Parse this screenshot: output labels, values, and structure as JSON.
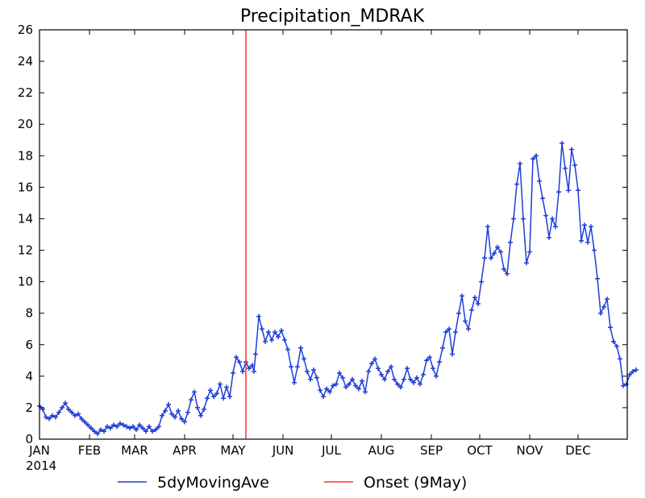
{
  "chart_data": {
    "type": "line",
    "title": "Precipitation_MDRAK",
    "xlabel": "",
    "ylabel": "",
    "xlim": [
      0,
      365
    ],
    "ylim": [
      0,
      26
    ],
    "yticks": [
      0,
      2,
      4,
      6,
      8,
      10,
      12,
      14,
      16,
      18,
      20,
      22,
      24,
      26
    ],
    "grid": false,
    "legend_position": "bottom",
    "x_tick_labels": [
      {
        "day": 0,
        "label": "JAN",
        "sublabel": "2014"
      },
      {
        "day": 31,
        "label": "FEB"
      },
      {
        "day": 59,
        "label": "MAR"
      },
      {
        "day": 90,
        "label": "APR"
      },
      {
        "day": 120,
        "label": "MAY"
      },
      {
        "day": 151,
        "label": "JUN"
      },
      {
        "day": 181,
        "label": "JUL"
      },
      {
        "day": 212,
        "label": "AUG"
      },
      {
        "day": 243,
        "label": "SEP"
      },
      {
        "day": 273,
        "label": "OCT"
      },
      {
        "day": 304,
        "label": "NOV"
      },
      {
        "day": 334,
        "label": "DEC"
      }
    ],
    "series": [
      {
        "name": "5dyMovingAve",
        "color": "#1f3fd6",
        "marker": "plus",
        "points": [
          [
            0,
            2.1
          ],
          [
            2,
            1.9
          ],
          [
            4,
            1.4
          ],
          [
            6,
            1.3
          ],
          [
            8,
            1.5
          ],
          [
            10,
            1.4
          ],
          [
            12,
            1.7
          ],
          [
            14,
            2.0
          ],
          [
            16,
            2.3
          ],
          [
            18,
            1.9
          ],
          [
            20,
            1.7
          ],
          [
            22,
            1.5
          ],
          [
            24,
            1.6
          ],
          [
            26,
            1.3
          ],
          [
            28,
            1.1
          ],
          [
            30,
            0.9
          ],
          [
            32,
            0.7
          ],
          [
            34,
            0.5
          ],
          [
            36,
            0.35
          ],
          [
            38,
            0.6
          ],
          [
            40,
            0.5
          ],
          [
            42,
            0.8
          ],
          [
            44,
            0.7
          ],
          [
            46,
            0.9
          ],
          [
            48,
            0.8
          ],
          [
            50,
            1.0
          ],
          [
            52,
            0.9
          ],
          [
            54,
            0.8
          ],
          [
            56,
            0.7
          ],
          [
            58,
            0.8
          ],
          [
            60,
            0.6
          ],
          [
            62,
            0.9
          ],
          [
            64,
            0.7
          ],
          [
            66,
            0.5
          ],
          [
            68,
            0.8
          ],
          [
            70,
            0.5
          ],
          [
            72,
            0.6
          ],
          [
            74,
            0.8
          ],
          [
            76,
            1.5
          ],
          [
            78,
            1.8
          ],
          [
            80,
            2.2
          ],
          [
            82,
            1.6
          ],
          [
            84,
            1.4
          ],
          [
            86,
            1.8
          ],
          [
            88,
            1.3
          ],
          [
            90,
            1.1
          ],
          [
            92,
            1.7
          ],
          [
            94,
            2.5
          ],
          [
            96,
            3.0
          ],
          [
            98,
            2.0
          ],
          [
            100,
            1.5
          ],
          [
            102,
            1.9
          ],
          [
            104,
            2.6
          ],
          [
            106,
            3.1
          ],
          [
            108,
            2.7
          ],
          [
            110,
            2.9
          ],
          [
            112,
            3.5
          ],
          [
            114,
            2.6
          ],
          [
            116,
            3.3
          ],
          [
            118,
            2.7
          ],
          [
            120,
            4.2
          ],
          [
            122,
            5.2
          ],
          [
            124,
            4.9
          ],
          [
            126,
            4.3
          ],
          [
            128,
            4.9
          ],
          [
            130,
            4.5
          ],
          [
            132,
            4.7
          ],
          [
            133,
            4.3
          ],
          [
            134,
            5.4
          ],
          [
            136,
            7.8
          ],
          [
            138,
            7.0
          ],
          [
            140,
            6.2
          ],
          [
            142,
            6.8
          ],
          [
            144,
            6.3
          ],
          [
            146,
            6.8
          ],
          [
            148,
            6.5
          ],
          [
            150,
            6.9
          ],
          [
            152,
            6.3
          ],
          [
            154,
            5.7
          ],
          [
            156,
            4.6
          ],
          [
            158,
            3.6
          ],
          [
            160,
            4.6
          ],
          [
            162,
            5.8
          ],
          [
            164,
            5.1
          ],
          [
            166,
            4.3
          ],
          [
            168,
            3.8
          ],
          [
            170,
            4.4
          ],
          [
            172,
            3.9
          ],
          [
            174,
            3.1
          ],
          [
            176,
            2.7
          ],
          [
            178,
            3.2
          ],
          [
            180,
            3.0
          ],
          [
            182,
            3.4
          ],
          [
            184,
            3.5
          ],
          [
            186,
            4.2
          ],
          [
            188,
            3.9
          ],
          [
            190,
            3.3
          ],
          [
            192,
            3.5
          ],
          [
            194,
            3.8
          ],
          [
            196,
            3.4
          ],
          [
            198,
            3.2
          ],
          [
            200,
            3.7
          ],
          [
            202,
            3.0
          ],
          [
            204,
            4.3
          ],
          [
            206,
            4.8
          ],
          [
            208,
            5.1
          ],
          [
            210,
            4.5
          ],
          [
            212,
            4.1
          ],
          [
            214,
            3.8
          ],
          [
            216,
            4.3
          ],
          [
            218,
            4.6
          ],
          [
            220,
            3.8
          ],
          [
            222,
            3.5
          ],
          [
            224,
            3.3
          ],
          [
            226,
            3.8
          ],
          [
            228,
            4.5
          ],
          [
            230,
            3.8
          ],
          [
            232,
            3.6
          ],
          [
            234,
            3.9
          ],
          [
            236,
            3.5
          ],
          [
            238,
            4.1
          ],
          [
            240,
            5.0
          ],
          [
            242,
            5.2
          ],
          [
            244,
            4.5
          ],
          [
            246,
            4.0
          ],
          [
            248,
            4.9
          ],
          [
            250,
            5.8
          ],
          [
            252,
            6.8
          ],
          [
            254,
            7.0
          ],
          [
            256,
            5.4
          ],
          [
            258,
            6.8
          ],
          [
            260,
            8.0
          ],
          [
            262,
            9.1
          ],
          [
            264,
            7.5
          ],
          [
            266,
            7.0
          ],
          [
            268,
            8.2
          ],
          [
            270,
            9.0
          ],
          [
            272,
            8.6
          ],
          [
            274,
            10.0
          ],
          [
            276,
            11.5
          ],
          [
            278,
            13.5
          ],
          [
            280,
            11.5
          ],
          [
            282,
            11.8
          ],
          [
            284,
            12.2
          ],
          [
            286,
            11.9
          ],
          [
            288,
            10.8
          ],
          [
            290,
            10.5
          ],
          [
            292,
            12.5
          ],
          [
            294,
            14.0
          ],
          [
            296,
            16.2
          ],
          [
            298,
            17.5
          ],
          [
            300,
            14.0
          ],
          [
            302,
            11.2
          ],
          [
            304,
            11.9
          ],
          [
            306,
            17.8
          ],
          [
            308,
            18.0
          ],
          [
            310,
            16.4
          ],
          [
            312,
            15.3
          ],
          [
            314,
            14.2
          ],
          [
            316,
            12.8
          ],
          [
            318,
            14.0
          ],
          [
            320,
            13.5
          ],
          [
            322,
            15.7
          ],
          [
            324,
            18.8
          ],
          [
            326,
            17.2
          ],
          [
            328,
            15.8
          ],
          [
            330,
            18.4
          ],
          [
            332,
            17.4
          ],
          [
            334,
            15.8
          ],
          [
            336,
            12.6
          ],
          [
            338,
            13.6
          ],
          [
            340,
            12.5
          ],
          [
            342,
            13.5
          ],
          [
            344,
            12.0
          ],
          [
            346,
            10.2
          ],
          [
            348,
            8.0
          ],
          [
            350,
            8.4
          ],
          [
            352,
            8.9
          ],
          [
            354,
            7.1
          ],
          [
            356,
            6.2
          ],
          [
            358,
            5.9
          ],
          [
            360,
            5.1
          ],
          [
            362,
            3.4
          ],
          [
            364,
            3.5
          ],
          [
            366,
            4.1
          ],
          [
            368,
            4.3
          ],
          [
            370,
            4.4
          ]
        ]
      },
      {
        "name": "Onset (9May)",
        "color": "#ff3030",
        "marker": "none",
        "points": [
          [
            128,
            0
          ],
          [
            128,
            26
          ]
        ]
      }
    ]
  }
}
